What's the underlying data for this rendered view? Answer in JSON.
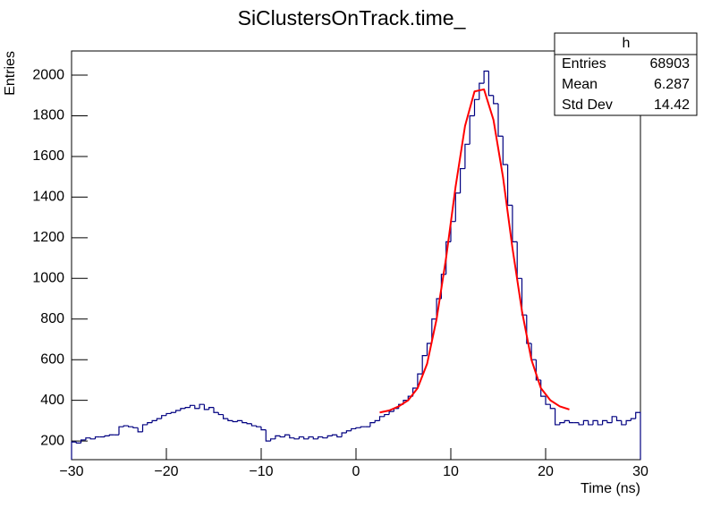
{
  "chart_data": {
    "type": "histogram",
    "title": "SiClustersOnTrack.time_",
    "x_label": "Time (ns)",
    "y_label": "Entries",
    "bins": [
      -30,
      -29.5,
      -29,
      -28.5,
      -28,
      -27.5,
      -27,
      -26.5,
      -26,
      -25.5,
      -25,
      -24.5,
      -24,
      -23.5,
      -23,
      -22.5,
      -22,
      -21.5,
      -21,
      -20.5,
      -20,
      -19.5,
      -19,
      -18.5,
      -18,
      -17.5,
      -17,
      -16.5,
      -16,
      -15.5,
      -15,
      -14.5,
      -14,
      -13.5,
      -13,
      -12.5,
      -12,
      -11.5,
      -11,
      -10.5,
      -10,
      -9.5,
      -9,
      -8.5,
      -8,
      -7.5,
      -7,
      -6.5,
      -6,
      -5.5,
      -5,
      -4.5,
      -4,
      -3.5,
      -3,
      -2.5,
      -2,
      -1.5,
      -1,
      -0.5,
      0,
      0.5,
      1,
      1.5,
      2,
      2.5,
      3,
      3.5,
      4,
      4.5,
      5,
      5.5,
      6,
      6.5,
      7,
      7.5,
      8,
      8.5,
      9,
      9.5,
      10,
      10.5,
      11,
      11.5,
      12,
      12.5,
      13,
      13.5,
      14,
      14.5,
      15,
      15.5,
      16,
      16.5,
      17,
      17.5,
      18,
      18.5,
      19,
      19.5,
      20,
      20.5,
      21,
      21.5,
      22,
      22.5,
      23,
      23.5,
      24,
      24.5,
      25,
      25.5,
      26,
      26.5,
      27,
      27.5,
      28,
      28.5,
      29,
      29.5,
      30
    ],
    "series": [
      {
        "name": "h",
        "color": "#000080",
        "values": [
          195,
          190,
          205,
          215,
          210,
          220,
          220,
          225,
          230,
          230,
          270,
          275,
          270,
          265,
          245,
          280,
          290,
          300,
          310,
          325,
          335,
          340,
          350,
          360,
          365,
          375,
          360,
          380,
          355,
          365,
          340,
          330,
          310,
          300,
          295,
          300,
          290,
          285,
          275,
          270,
          255,
          200,
          210,
          225,
          220,
          230,
          215,
          210,
          220,
          210,
          220,
          210,
          220,
          215,
          225,
          230,
          220,
          240,
          250,
          260,
          265,
          270,
          270,
          290,
          300,
          320,
          330,
          345,
          360,
          380,
          400,
          420,
          460,
          530,
          620,
          680,
          800,
          900,
          1020,
          1180,
          1280,
          1420,
          1540,
          1660,
          1800,
          1880,
          1960,
          2020,
          1900,
          1860,
          1700,
          1560,
          1360,
          1180,
          1000,
          820,
          680,
          600,
          500,
          420,
          380,
          360,
          280,
          290,
          300,
          290,
          290,
          280,
          300,
          280,
          300,
          280,
          300,
          290,
          320,
          300,
          280,
          300,
          310,
          340
        ]
      }
    ],
    "fit": {
      "color": "#ff0000",
      "x": [
        2.5,
        3.5,
        4.5,
        5.5,
        6.5,
        7.5,
        8.5,
        9.5,
        10.5,
        11.5,
        12.5,
        13.5,
        14.5,
        15.5,
        16.5,
        17.5,
        18.5,
        19.5,
        20.5,
        21.5,
        22.5
      ],
      "values": [
        340,
        350,
        370,
        400,
        460,
        580,
        800,
        1100,
        1450,
        1750,
        1920,
        1930,
        1780,
        1500,
        1150,
        840,
        600,
        460,
        400,
        370,
        355
      ]
    },
    "stats": {
      "labels": [
        "Entries",
        "Mean",
        "Std Dev"
      ],
      "values": [
        68903,
        6.287,
        14.42
      ]
    },
    "xlim": [
      -30,
      30
    ],
    "ylim": [
      108,
      2119
    ],
    "xticks": [
      {
        "value": -30,
        "label": "−30"
      },
      {
        "value": -20,
        "label": "−20"
      },
      {
        "value": -10,
        "label": "−10"
      },
      0,
      10,
      20,
      30
    ],
    "yticks": [
      200,
      400,
      600,
      800,
      1000,
      1200,
      1400,
      1600,
      1800,
      2000
    ]
  }
}
